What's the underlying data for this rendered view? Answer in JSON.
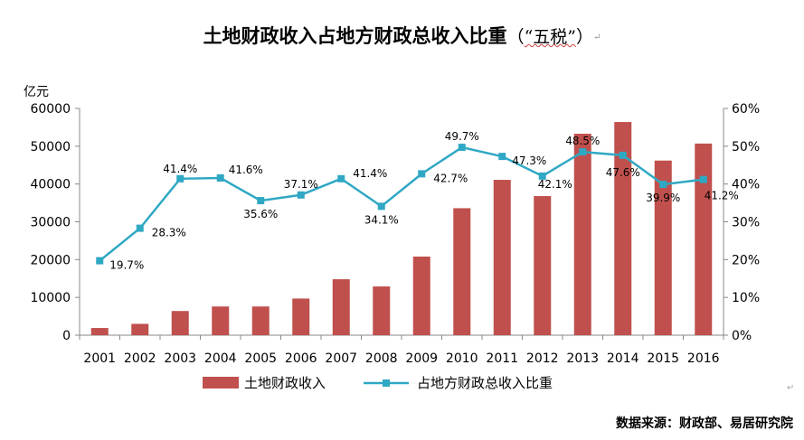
{
  "title": {
    "main": "土地财政收入占地方财政总收入比重",
    "paren_open": "（",
    "quoted": "“五税”",
    "paren_close": "）",
    "mark": "↵"
  },
  "source_note": "数据来源：财政部、易居研究院",
  "edge_mark": "↵",
  "colors": {
    "bar": "#c0504d",
    "line": "#2fa8c4",
    "axis": "#888888"
  },
  "chart_data": {
    "type": "bar",
    "categories": [
      "2001",
      "2002",
      "2003",
      "2004",
      "2005",
      "2006",
      "2007",
      "2008",
      "2009",
      "2010",
      "2011",
      "2012",
      "2013",
      "2014",
      "2015",
      "2016"
    ],
    "series": [
      {
        "name": "土地财政收入",
        "type": "bar",
        "axis": "left",
        "values": [
          1900,
          3000,
          6400,
          7600,
          7600,
          9700,
          14800,
          12900,
          20800,
          33600,
          41100,
          36800,
          53300,
          56400,
          46200,
          50700
        ]
      },
      {
        "name": "占地方财政总收入比重",
        "type": "line",
        "axis": "right",
        "values": [
          19.7,
          28.3,
          41.4,
          41.6,
          35.6,
          37.1,
          41.4,
          34.1,
          42.7,
          49.7,
          47.3,
          42.1,
          48.5,
          47.6,
          39.9,
          41.2
        ],
        "labels": [
          "19.7%",
          "28.3%",
          "41.4%",
          "41.6%",
          "35.6%",
          "37.1%",
          "41.4%",
          "34.1%",
          "42.7%",
          "49.7%",
          "47.3%",
          "42.1%",
          "48.5%",
          "47.6%",
          "39.9%",
          "41.2%"
        ]
      }
    ],
    "ylabel": "亿元",
    "ylim": [
      0,
      60000
    ],
    "yticks": [
      "0",
      "10000",
      "20000",
      "30000",
      "40000",
      "50000",
      "60000"
    ],
    "y2lim": [
      0,
      60
    ],
    "y2ticks": [
      "0%",
      "10%",
      "20%",
      "30%",
      "40%",
      "50%",
      "60%"
    ],
    "legend_position": "bottom"
  }
}
